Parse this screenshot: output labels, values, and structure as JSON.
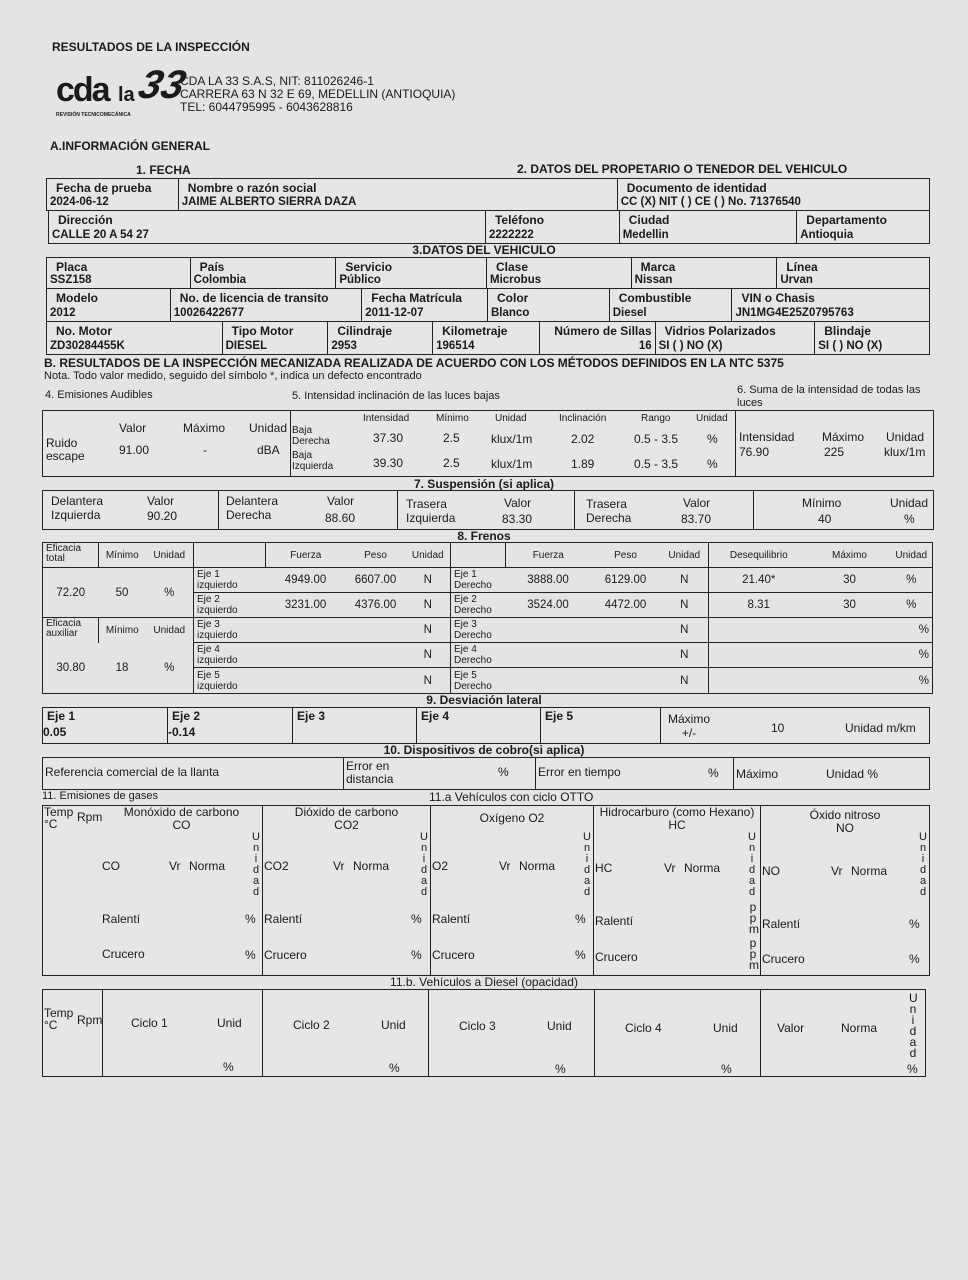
{
  "header": {
    "title": "RESULTADOS DE LA INSPECCIÓN",
    "logo": {
      "cda": "cda",
      "la": "la",
      "num": "33",
      "tagline": "REVISIÓN TECNICOMECÁNICA"
    },
    "company": "CDA LA 33 S.A.S, NIT: 811026246-1",
    "address": "CARRERA 63 N 32 E 69, MEDELLIN (ANTIOQUIA)",
    "phone": "TEL: 6044795995 - 6043628816"
  },
  "general": {
    "title": "A.INFORMACIÓN GENERAL",
    "fecha_heading": "1. FECHA",
    "owner_heading": "2. DATOS DEL PROPETARIO O TENEDOR DEL VEHICULO",
    "fecha_prueba": {
      "label": "Fecha de prueba",
      "value": "2024-06-12"
    },
    "nombre": {
      "label": "Nombre o razón social",
      "value": "JAIME ALBERTO SIERRA DAZA"
    },
    "documento": {
      "label": "Documento de identidad",
      "value": "CC (X) NIT ( ) CE ( ) No. 71376540"
    },
    "direccion": {
      "label": "Dirección",
      "value": "CALLE 20 A 54 27"
    },
    "telefono": {
      "label": "Teléfono",
      "value": "2222222"
    },
    "ciudad": {
      "label": "Ciudad",
      "value": "Medellin"
    },
    "departamento": {
      "label": "Departamento",
      "value": "Antioquia"
    }
  },
  "vehicle": {
    "heading": "3.DATOS DEL VEHICULO",
    "rows": [
      [
        {
          "label": "Placa",
          "value": "SSZ158"
        },
        {
          "label": "País",
          "value": "Colombia"
        },
        {
          "label": "Servicio",
          "value": "Público"
        },
        {
          "label": "Clase",
          "value": "Microbus"
        },
        {
          "label": "Marca",
          "value": "Nissan"
        },
        {
          "label": "Línea",
          "value": "Urvan"
        }
      ],
      [
        {
          "label": "Modelo",
          "value": "2012"
        },
        {
          "label": "No. de licencia de transito",
          "value": "10026422677"
        },
        {
          "label": "Fecha Matrícula",
          "value": "2011-12-07"
        },
        {
          "label": "Color",
          "value": "Blanco"
        },
        {
          "label": "Combustible",
          "value": "Diesel"
        },
        {
          "label": "VIN o Chasis",
          "value": "JN1MG4E25Z0795763"
        }
      ],
      [
        {
          "label": "No. Motor",
          "value": "ZD30284455K"
        },
        {
          "label": "Tipo Motor",
          "value": "DIESEL"
        },
        {
          "label": "Cilindraje",
          "value": "2953"
        },
        {
          "label": "Kilometraje",
          "value": "196514"
        },
        {
          "label": "Número de Sillas",
          "value": "16"
        },
        {
          "label": "Vidrios Polarizados",
          "value": "SI ( ) NO (X)"
        },
        {
          "label": "Blindaje",
          "value": "SI ( ) NO (X)"
        }
      ]
    ]
  },
  "results": {
    "title": "B. RESULTADOS DE LA INSPECCIÓN MECANIZADA REALIZADA DE ACUERDO CON LOS MÉTODOS DEFINIDOS EN LA NTC 5375",
    "note": "Nota. Todo valor medido, seguido del símbolo *, indica un defecto encontrado"
  },
  "noise": {
    "heading": "4. Emisiones Audibles",
    "col_valor": "Valor",
    "col_maximo": "Máximo",
    "col_unidad": "Unidad",
    "label": "Ruido escape",
    "valor": "91.00",
    "maximo": "-",
    "unidad": "dBA"
  },
  "lights": {
    "heading": "5. Intensidad inclinación de las luces bajas",
    "columns": [
      "Intensidad",
      "Mínimo",
      "Unidad",
      "Inclinación",
      "Rango",
      "Unidad"
    ],
    "rows": [
      {
        "label": "Baja Derecha",
        "intensidad": "37.30",
        "minimo": "2.5",
        "unidad": "klux/1m",
        "inclinacion": "2.02",
        "rango": "0.5 - 3.5",
        "unidad2": "%"
      },
      {
        "label": "Baja Izquierda",
        "intensidad": "39.30",
        "minimo": "2.5",
        "unidad": "klux/1m",
        "inclinacion": "1.89",
        "rango": "0.5 - 3.5",
        "unidad2": "%"
      }
    ]
  },
  "lights_sum": {
    "heading": "6. Suma de la intensidad de todas las luces",
    "col_intensidad": "Intensidad",
    "col_maximo": "Máximo",
    "col_unidad": "Unidad",
    "intensidad": "76.90",
    "maximo": "225",
    "unidad": "klux/1m"
  },
  "suspension": {
    "heading": "7. Suspensión (si aplica)",
    "items": [
      {
        "label": "Delantera Izquierda",
        "col": "Valor",
        "value": "90.20"
      },
      {
        "label": "Delantera Derecha",
        "col": "Valor",
        "value": "88.60"
      },
      {
        "label": "Trasera Izquierda",
        "col": "Valor",
        "value": "83.30"
      },
      {
        "label": "Trasera Derecha",
        "col": "Valor",
        "value": "83.70"
      }
    ],
    "col_minimo": "Mínimo",
    "minimo": "40",
    "col_unidad": "Unidad",
    "unidad": "%"
  },
  "brakes": {
    "heading": "8. Frenos",
    "eficacia_total": {
      "label": "Eficacia total",
      "col_minimo": "Mínimo",
      "col_unidad": "Unidad",
      "value": "72.20",
      "minimo": "50",
      "unidad": "%"
    },
    "eficacia_auxiliar": {
      "label": "Eficacia auxiliar",
      "col_minimo": "Mínimo",
      "col_unidad": "Unidad",
      "value": "30.80",
      "minimo": "18",
      "unidad": "%"
    },
    "col_fuerza": "Fuerza",
    "col_peso": "Peso",
    "col_unidad": "Unidad",
    "col_desequilibrio": "Desequilibrio",
    "col_maximo": "Máximo",
    "axles": [
      {
        "izq": "Eje 1 izquierdo",
        "izq_fuerza": "4949.00",
        "izq_peso": "6607.00",
        "izq_unidad": "N",
        "der": "Eje 1 Derecho",
        "der_fuerza": "3888.00",
        "der_peso": "6129.00",
        "der_unidad": "N",
        "desequilibrio": "21.40*",
        "maximo": "30",
        "unidad": "%"
      },
      {
        "izq": "Eje 2 izquierdo",
        "izq_fuerza": "3231.00",
        "izq_peso": "4376.00",
        "izq_unidad": "N",
        "der": "Eje 2 Derecho",
        "der_fuerza": "3524.00",
        "der_peso": "4472.00",
        "der_unidad": "N",
        "desequilibrio": "8.31",
        "maximo": "30",
        "unidad": "%"
      },
      {
        "izq": "Eje 3 izquierdo",
        "izq_fuerza": "",
        "izq_peso": "",
        "izq_unidad": "N",
        "der": "Eje 3 Derecho",
        "der_fuerza": "",
        "der_peso": "",
        "der_unidad": "N",
        "desequilibrio": "",
        "maximo": "",
        "unidad": "%"
      },
      {
        "izq": "Eje 4 izquierdo",
        "izq_fuerza": "",
        "izq_peso": "",
        "izq_unidad": "N",
        "der": "Eje 4 Derecho",
        "der_fuerza": "",
        "der_peso": "",
        "der_unidad": "N",
        "desequilibrio": "",
        "maximo": "",
        "unidad": "%"
      },
      {
        "izq": "Eje 5 izquierdo",
        "izq_fuerza": "",
        "izq_peso": "",
        "izq_unidad": "N",
        "der": "Eje 5 Derecho",
        "der_fuerza": "",
        "der_peso": "",
        "der_unidad": "N",
        "desequilibrio": "",
        "maximo": "",
        "unidad": "%"
      }
    ]
  },
  "lateral": {
    "heading": "9. Desviación lateral",
    "axles": [
      {
        "label": "Eje 1",
        "value": "0.05"
      },
      {
        "label": "Eje 2",
        "value": "-0.14"
      },
      {
        "label": "Eje 3",
        "value": ""
      },
      {
        "label": "Eje 4",
        "value": ""
      },
      {
        "label": "Eje 5",
        "value": ""
      }
    ],
    "max_label": "Máximo +/-",
    "maximo": "10",
    "unidad": "Unidad m/km"
  },
  "taximeter": {
    "heading": "10. Dispositivos de cobro(si aplica)",
    "referencia": "Referencia comercial de la llanta",
    "error_distancia": "Error en distancia",
    "error_distancia_unit": "%",
    "error_tiempo": "Error en tiempo",
    "error_tiempo_unit": "%",
    "maximo": "Máximo",
    "unidad": "Unidad %"
  },
  "gases": {
    "heading": "11. Emisiones de gases",
    "otto_heading": "11.a Vehículos con ciclo OTTO",
    "temp": "Temp °C",
    "rpm": "Rpm",
    "vr": "Vr",
    "norma": "Norma",
    "unidad": "Unidad",
    "ralenti": "Ralentí",
    "crucero": "Crucero",
    "items": [
      {
        "title": "Monóxido de carbono",
        "formula": "CO",
        "symbol": "CO",
        "unit_ralenti": "%",
        "unit_crucero": "%"
      },
      {
        "title": "Dióxido de carbono",
        "formula": "CO2",
        "symbol": "CO2",
        "unit_ralenti": "%",
        "unit_crucero": "%"
      },
      {
        "title": "",
        "formula": "Oxígeno O2",
        "symbol": "O2",
        "unit_ralenti": "%",
        "unit_crucero": "%"
      },
      {
        "title": "Hidrocarburo (como Hexano)",
        "formula": "HC",
        "symbol": "HC",
        "unit_ralenti": "ppm",
        "unit_crucero": "ppm"
      },
      {
        "title": "Óxido nitroso",
        "formula": "NO",
        "symbol": "NO",
        "unit_ralenti": "%",
        "unit_crucero": "%"
      }
    ]
  },
  "diesel": {
    "heading": "11.b. Vehículos a Diesel (opacidad)",
    "temp": "Temp °C",
    "rpm": "Rpm",
    "cycles": [
      {
        "label": "Ciclo 1",
        "unid": "Unid",
        "unit": "%"
      },
      {
        "label": "Ciclo 2",
        "unid": "Unid",
        "unit": "%"
      },
      {
        "label": "Ciclo 3",
        "unid": "Unid",
        "unit": "%"
      },
      {
        "label": "Ciclo 4",
        "unid": "Unid",
        "unit": "%"
      }
    ],
    "valor": "Valor",
    "norma": "Norma",
    "unidad": "Unidad",
    "unit": "%"
  }
}
